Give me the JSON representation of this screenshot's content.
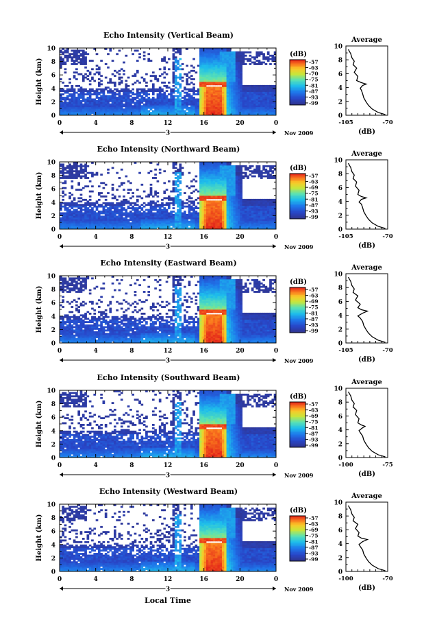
{
  "chart_data": {
    "type": "heatmap",
    "xlabel": "Local Time",
    "date_label": "Nov 2009",
    "day_label": "3",
    "panels": [
      {
        "title": "Echo Intensity (Vertical Beam)",
        "ylabel": "Height (km)",
        "x_ticks": [
          "0",
          "4",
          "8",
          "12",
          "16",
          "20",
          "0"
        ],
        "y_ticks": [
          "0",
          "2",
          "4",
          "6",
          "8",
          "10"
        ],
        "xlim": [
          0,
          24
        ],
        "ylim": [
          0,
          10
        ],
        "colorbar": {
          "label": "(dB)",
          "ticks": [
            "-57",
            "-63",
            "-70",
            "-75",
            "-81",
            "-87",
            "-93",
            "-99"
          ]
        },
        "average": {
          "title": "Average",
          "xlabel": "(dB)",
          "x_ticks": [
            "-105",
            "-70"
          ],
          "xlim": [
            -105,
            -70
          ],
          "y_ticks": [
            "0",
            "2",
            "4",
            "6",
            "8",
            "10"
          ],
          "profile": [
            [
              -72,
              0.1
            ],
            [
              -78,
              0.4
            ],
            [
              -83,
              0.9
            ],
            [
              -86,
              1.4
            ],
            [
              -88,
              1.9
            ],
            [
              -90,
              2.5
            ],
            [
              -91,
              3.1
            ],
            [
              -92,
              3.6
            ],
            [
              -93,
              3.9
            ],
            [
              -91,
              4.3
            ],
            [
              -88,
              4.5
            ],
            [
              -92,
              4.7
            ],
            [
              -96,
              5.0
            ],
            [
              -95,
              5.6
            ],
            [
              -98,
              6.2
            ],
            [
              -96,
              6.8
            ],
            [
              -99,
              7.3
            ],
            [
              -98,
              7.8
            ],
            [
              -100,
              8.3
            ],
            [
              -101,
              8.9
            ],
            [
              -103,
              9.5
            ]
          ]
        }
      },
      {
        "title": "Echo Intensity (Northward Beam)",
        "ylabel": "Height (km)",
        "x_ticks": [
          "0",
          "4",
          "8",
          "12",
          "16",
          "20",
          "0"
        ],
        "y_ticks": [
          "0",
          "2",
          "4",
          "6",
          "8",
          "10"
        ],
        "xlim": [
          0,
          24
        ],
        "ylim": [
          0,
          10
        ],
        "colorbar": {
          "label": "(dB)",
          "ticks": [
            "-57",
            "-63",
            "-69",
            "-75",
            "-81",
            "-87",
            "-93",
            "-99"
          ]
        },
        "average": {
          "title": "Average",
          "xlabel": "(dB)",
          "x_ticks": [
            "-105",
            "-70"
          ],
          "xlim": [
            -105,
            -70
          ],
          "y_ticks": [
            "0",
            "2",
            "4",
            "6",
            "8",
            "10"
          ],
          "profile": [
            [
              -72,
              0.1
            ],
            [
              -78,
              0.4
            ],
            [
              -83,
              0.9
            ],
            [
              -86,
              1.4
            ],
            [
              -88,
              1.9
            ],
            [
              -90,
              2.5
            ],
            [
              -91,
              3.1
            ],
            [
              -92,
              3.6
            ],
            [
              -94,
              3.9
            ],
            [
              -92,
              4.3
            ],
            [
              -88,
              4.5
            ],
            [
              -92,
              4.7
            ],
            [
              -95,
              5.0
            ],
            [
              -94,
              5.6
            ],
            [
              -97,
              6.2
            ],
            [
              -96,
              6.8
            ],
            [
              -99,
              7.3
            ],
            [
              -98,
              7.8
            ],
            [
              -100,
              8.3
            ],
            [
              -101,
              8.9
            ],
            [
              -103,
              9.5
            ]
          ]
        }
      },
      {
        "title": "Echo Intensity (Eastward Beam)",
        "ylabel": "Height (km)",
        "x_ticks": [
          "0",
          "4",
          "8",
          "12",
          "16",
          "20",
          "0"
        ],
        "y_ticks": [
          "0",
          "2",
          "4",
          "6",
          "8",
          "10"
        ],
        "xlim": [
          0,
          24
        ],
        "ylim": [
          0,
          10
        ],
        "colorbar": {
          "label": "(dB)",
          "ticks": [
            "-57",
            "-63",
            "-69",
            "-75",
            "-81",
            "-87",
            "-93",
            "-99"
          ]
        },
        "average": {
          "title": "Average",
          "xlabel": "(dB)",
          "x_ticks": [
            "-105",
            "-70"
          ],
          "xlim": [
            -105,
            -70
          ],
          "y_ticks": [
            "0",
            "2",
            "4",
            "6",
            "8",
            "10"
          ],
          "profile": [
            [
              -72,
              0.1
            ],
            [
              -78,
              0.4
            ],
            [
              -83,
              0.9
            ],
            [
              -86,
              1.4
            ],
            [
              -88,
              1.9
            ],
            [
              -90,
              2.5
            ],
            [
              -91,
              3.1
            ],
            [
              -93,
              3.6
            ],
            [
              -95,
              3.9
            ],
            [
              -91,
              4.3
            ],
            [
              -87,
              4.6
            ],
            [
              -92,
              4.8
            ],
            [
              -95,
              5.1
            ],
            [
              -93,
              5.6
            ],
            [
              -97,
              6.2
            ],
            [
              -95,
              6.8
            ],
            [
              -99,
              7.3
            ],
            [
              -98,
              7.8
            ],
            [
              -100,
              8.3
            ],
            [
              -101,
              8.9
            ],
            [
              -103,
              9.5
            ]
          ]
        }
      },
      {
        "title": "Echo Intensity (Southward Beam)",
        "ylabel": "Height (km)",
        "x_ticks": [
          "0",
          "4",
          "8",
          "12",
          "16",
          "20",
          "0"
        ],
        "y_ticks": [
          "0",
          "2",
          "4",
          "6",
          "8",
          "10"
        ],
        "xlim": [
          0,
          24
        ],
        "ylim": [
          0,
          10
        ],
        "colorbar": {
          "label": "(dB)",
          "ticks": [
            "-57",
            "-63",
            "-69",
            "-75",
            "-81",
            "-87",
            "-93",
            "-99"
          ]
        },
        "average": {
          "title": "Average",
          "xlabel": "(dB)",
          "x_ticks": [
            "-100",
            "-75"
          ],
          "xlim": [
            -105,
            -70
          ],
          "y_ticks": [
            "0",
            "2",
            "4",
            "6",
            "8",
            "10"
          ],
          "profile": [
            [
              -72,
              0.1
            ],
            [
              -78,
              0.4
            ],
            [
              -83,
              0.9
            ],
            [
              -86,
              1.4
            ],
            [
              -88,
              1.9
            ],
            [
              -90,
              2.5
            ],
            [
              -91,
              3.1
            ],
            [
              -93,
              3.6
            ],
            [
              -94,
              3.9
            ],
            [
              -91,
              4.3
            ],
            [
              -89,
              4.5
            ],
            [
              -92,
              4.7
            ],
            [
              -95,
              5.0
            ],
            [
              -94,
              5.6
            ],
            [
              -97,
              6.2
            ],
            [
              -96,
              6.8
            ],
            [
              -99,
              7.3
            ],
            [
              -98,
              7.8
            ],
            [
              -100,
              8.3
            ],
            [
              -101,
              8.9
            ],
            [
              -103,
              9.5
            ]
          ]
        }
      },
      {
        "title": "Echo Intensity (Westward Beam)",
        "ylabel": "Height (km)",
        "x_ticks": [
          "0",
          "4",
          "8",
          "12",
          "16",
          "20",
          "0"
        ],
        "y_ticks": [
          "0",
          "2",
          "4",
          "6",
          "8",
          "10"
        ],
        "xlim": [
          0,
          24
        ],
        "ylim": [
          0,
          10
        ],
        "colorbar": {
          "label": "(dB)",
          "ticks": [
            "-57",
            "-63",
            "-69",
            "-75",
            "-81",
            "-87",
            "-93",
            "-99"
          ]
        },
        "average": {
          "title": "Average",
          "xlabel": "(dB)",
          "x_ticks": [
            "-100",
            "-70"
          ],
          "xlim": [
            -105,
            -70
          ],
          "y_ticks": [
            "0",
            "2",
            "4",
            "6",
            "8",
            "10"
          ],
          "profile": [
            [
              -72,
              0.1
            ],
            [
              -78,
              0.4
            ],
            [
              -83,
              0.9
            ],
            [
              -86,
              1.4
            ],
            [
              -88,
              1.9
            ],
            [
              -90,
              2.5
            ],
            [
              -91,
              3.1
            ],
            [
              -93,
              3.6
            ],
            [
              -94,
              3.9
            ],
            [
              -91,
              4.3
            ],
            [
              -87,
              4.6
            ],
            [
              -92,
              4.8
            ],
            [
              -95,
              5.1
            ],
            [
              -94,
              5.6
            ],
            [
              -97,
              6.2
            ],
            [
              -95,
              6.8
            ],
            [
              -99,
              7.3
            ],
            [
              -98,
              7.8
            ],
            [
              -100,
              8.3
            ],
            [
              -101,
              8.9
            ],
            [
              -103,
              9.5
            ]
          ]
        }
      }
    ]
  }
}
